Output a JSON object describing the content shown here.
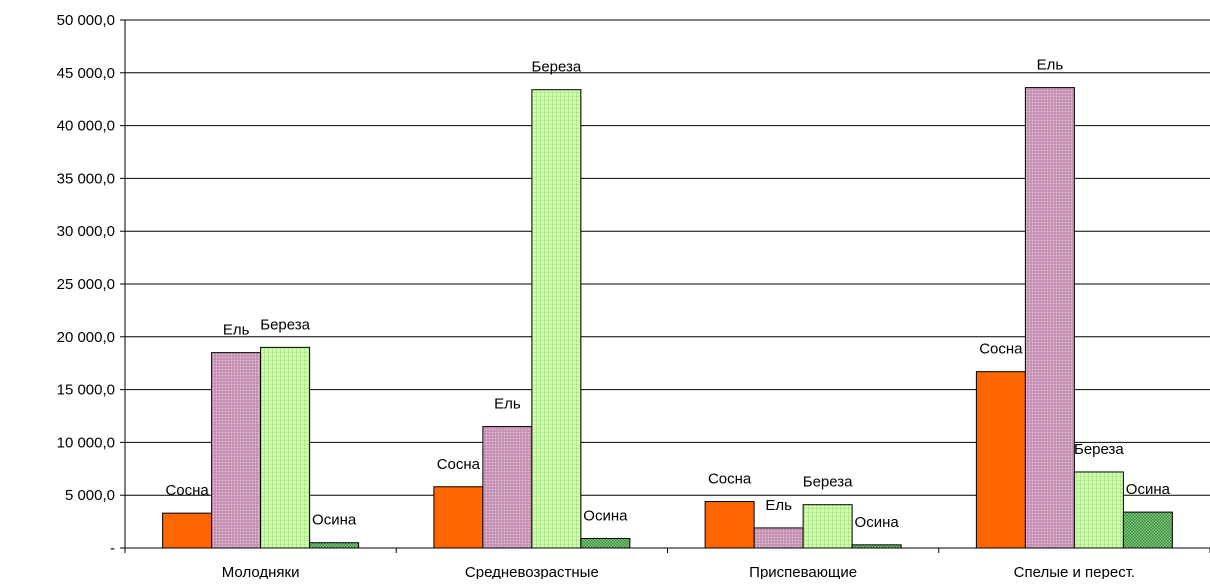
{
  "chart_data": {
    "type": "bar",
    "title": "",
    "xlabel": "",
    "ylabel": "",
    "categories": [
      "Молодняки",
      "Средневозрастные",
      "Приспевающие",
      "Спелые и перест."
    ],
    "series": [
      {
        "name": "Сосна",
        "values": [
          3300,
          5800,
          4400,
          16700
        ],
        "color": "#ff6600",
        "pattern": "solid"
      },
      {
        "name": "Ель",
        "values": [
          18500,
          11500,
          1900,
          43600
        ],
        "color": "#cc99bb",
        "pattern": "dots"
      },
      {
        "name": "Береза",
        "values": [
          19000,
          43400,
          4100,
          7200
        ],
        "color": "#ccffaa",
        "pattern": "grid"
      },
      {
        "name": "Осина",
        "values": [
          500,
          900,
          300,
          3400
        ],
        "color": "#66bb66",
        "pattern": "checker"
      }
    ],
    "ylim": [
      0,
      50000
    ],
    "ytick_values": [
      0,
      5000,
      10000,
      15000,
      20000,
      25000,
      30000,
      35000,
      40000,
      45000,
      50000
    ],
    "ytick_labels": [
      "-",
      "5 000,0",
      "10 000,0",
      "15 000,0",
      "20 000,0",
      "25 000,0",
      "30 000,0",
      "35 000,0",
      "40 000,0",
      "45 000,0",
      "50 000,0"
    ],
    "grid": true,
    "legend": "none",
    "data_labels": "series name above each bar"
  }
}
